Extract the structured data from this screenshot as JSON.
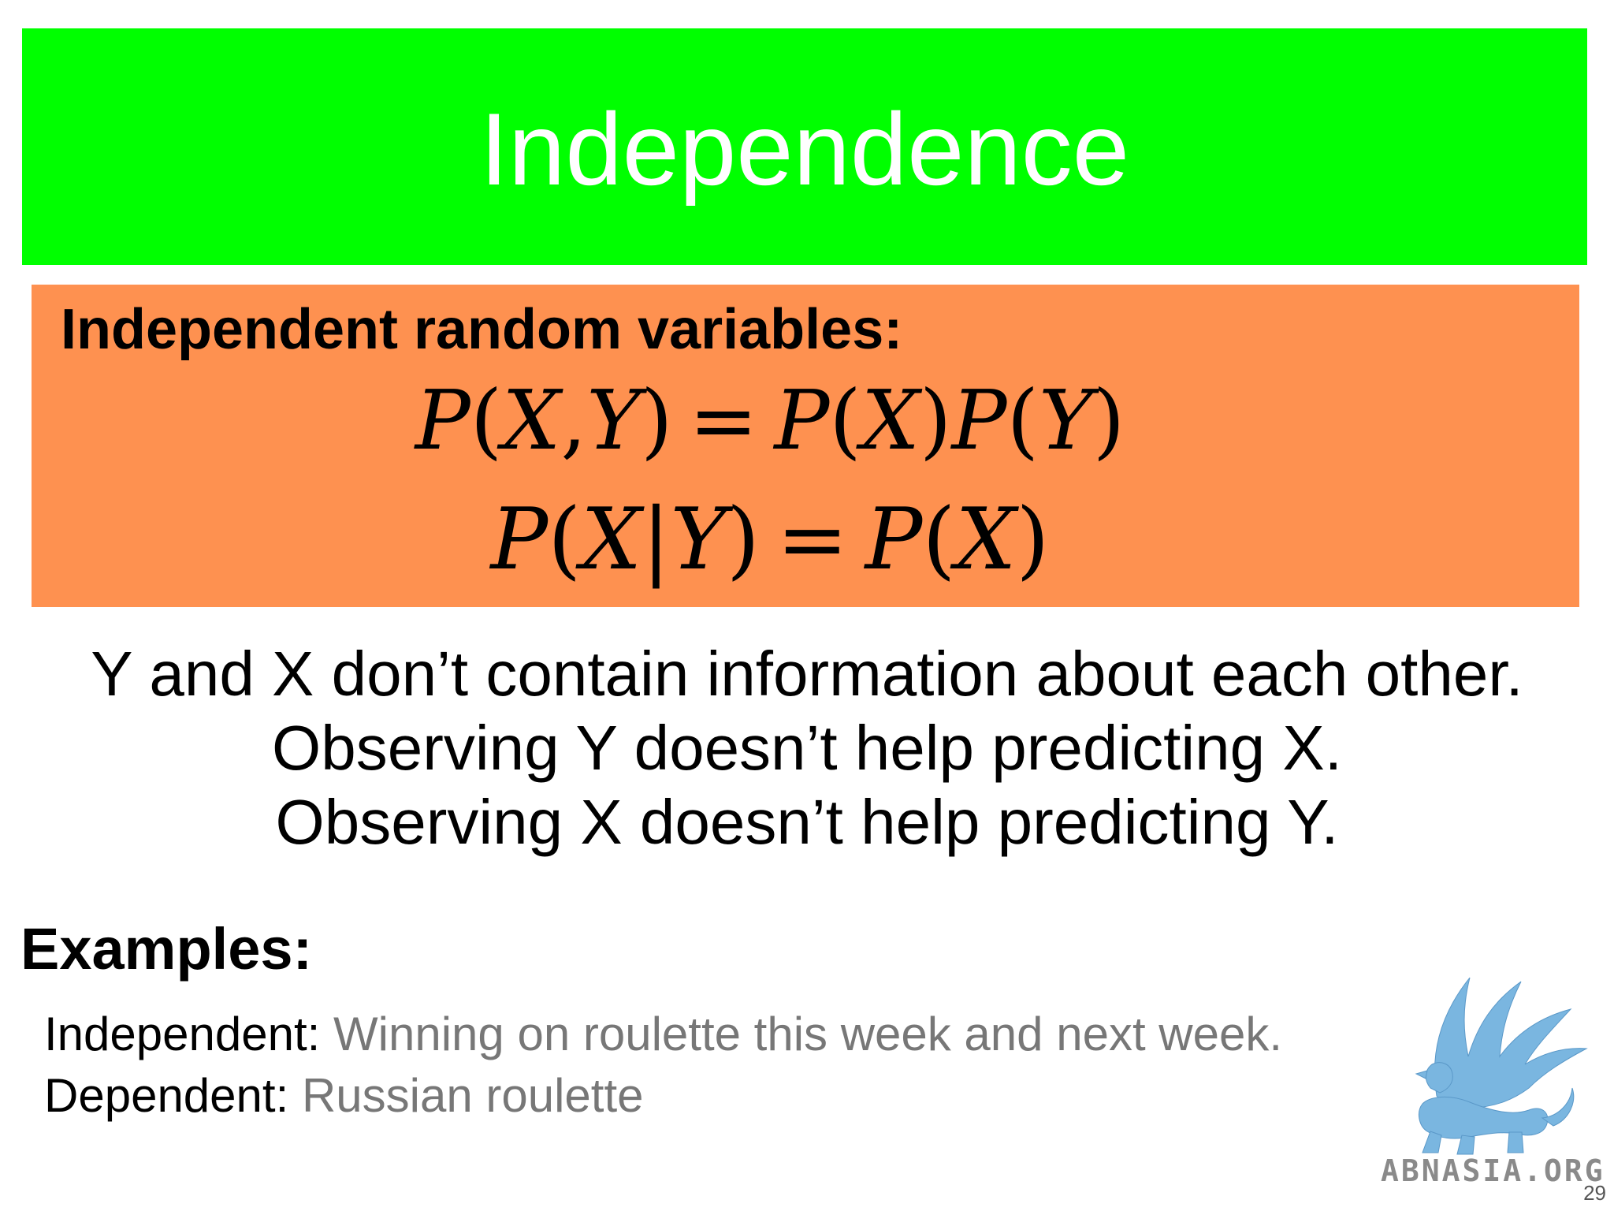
{
  "slide": {
    "title": "Independence",
    "definition": {
      "heading": "Independent random variables:",
      "formula_1": "P(X,Y) = P(X)P(Y)",
      "formula_2": "P(X|Y) = P(X)"
    },
    "statements": [
      "Y and X don’t contain information about each other.",
      "Observing Y doesn’t help predicting X.",
      "Observing X doesn’t help predicting Y."
    ],
    "examples": {
      "heading": "Examples:",
      "items": [
        {
          "label": "Independent:",
          "text": "Winning on roulette this week and next week."
        },
        {
          "label": "Dependent:",
          "text": "Russian roulette"
        }
      ]
    },
    "logo_text": "ABNASIA.ORG",
    "page_number": "29"
  },
  "colors": {
    "title_bar": "#00ff00",
    "definition_box": "#fe9150",
    "example_text": "#777777",
    "logo": "#7ab6e0"
  },
  "icons": {
    "logo": "griffin-logo-icon"
  }
}
